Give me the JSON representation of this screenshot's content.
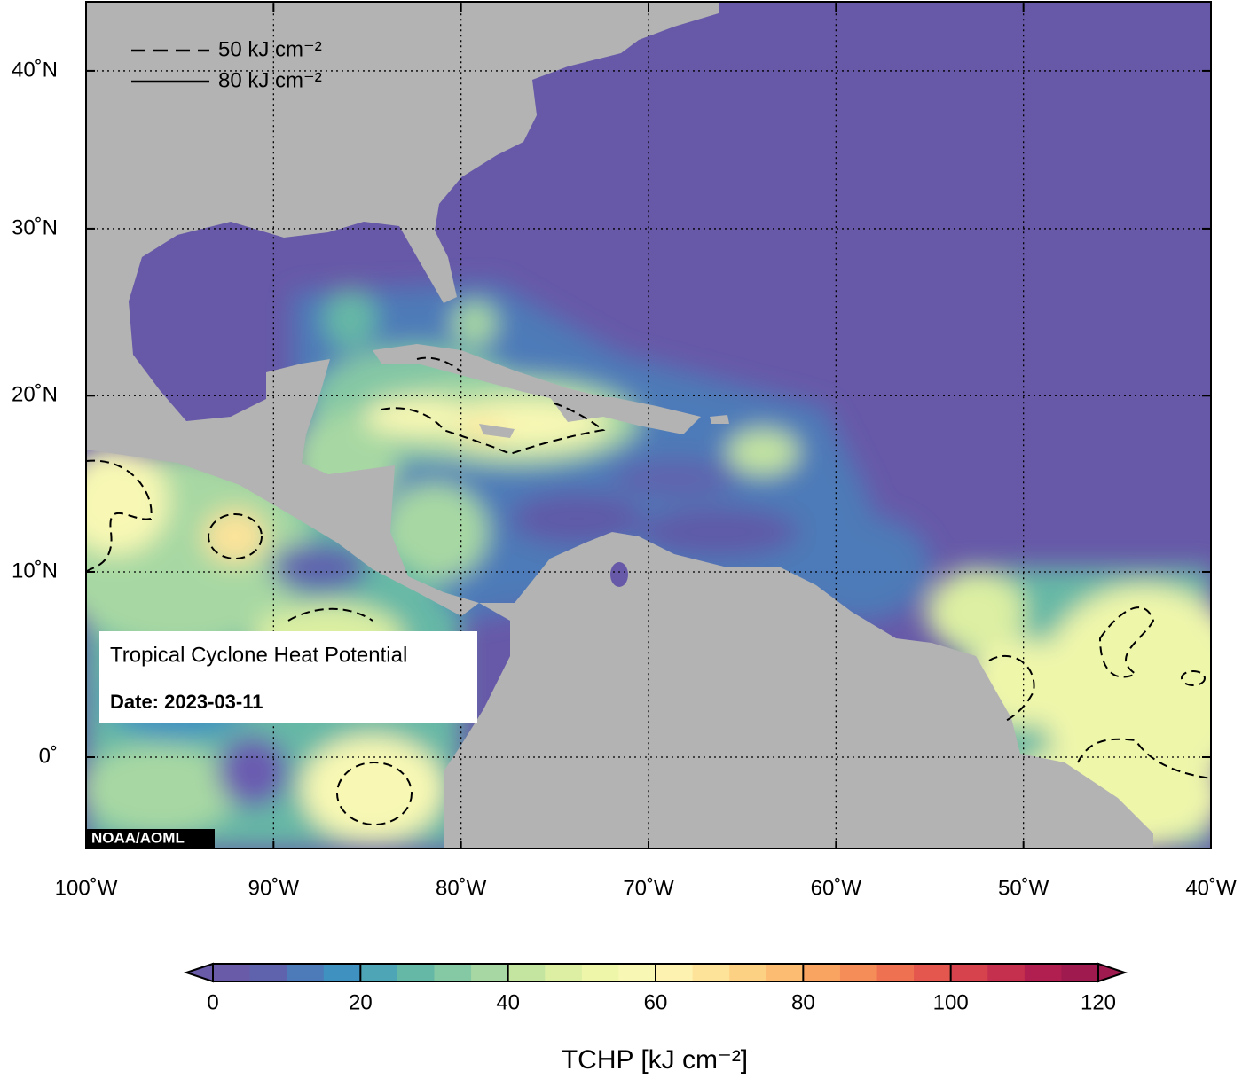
{
  "map": {
    "type": "map",
    "lonlim": [
      -100,
      -40
    ],
    "latlim": [
      -4.8,
      44.5
    ],
    "lon_ticks": [
      {
        "value": -100,
        "label": "100˚W"
      },
      {
        "value": -90,
        "label": "90˚W"
      },
      {
        "value": -80,
        "label": "80˚W"
      },
      {
        "value": -70,
        "label": "70˚W"
      },
      {
        "value": -60,
        "label": "60˚W"
      },
      {
        "value": -50,
        "label": "50˚W"
      },
      {
        "value": -40,
        "label": "40˚W"
      }
    ],
    "lat_ticks": [
      {
        "value": 0,
        "label": "0˚"
      },
      {
        "value": 10,
        "label": "10˚N"
      },
      {
        "value": 20,
        "label": "20˚N"
      },
      {
        "value": 30,
        "label": "30˚N"
      },
      {
        "value": 40,
        "label": "40˚N"
      }
    ],
    "grid": true,
    "legend": [
      {
        "label": "50 kJ cm⁻²",
        "style": "dashed"
      },
      {
        "label": "80 kJ cm⁻²",
        "style": "solid"
      }
    ],
    "info": {
      "title": "Tropical Cyclone Heat Potential",
      "date": "Date: 2023-03-11"
    },
    "credit": "NOAA/AOML"
  },
  "colorbar": {
    "lim": [
      0,
      120
    ],
    "ticks": [
      0,
      20,
      40,
      60,
      80,
      100,
      120
    ],
    "colors": [
      "#6a5ba8",
      "#5f63ad",
      "#4d7ab8",
      "#3f92bf",
      "#4ea5b5",
      "#66b8a6",
      "#85c8a4",
      "#a7d8a3",
      "#c4e5a0",
      "#dcefa2",
      "#eef6aa",
      "#f8f8b4",
      "#fef2b0",
      "#fde39a",
      "#fdd184",
      "#fcbd72",
      "#faa462",
      "#f58d59",
      "#ee7152",
      "#e4574e",
      "#d6434d",
      "#c5304f",
      "#b11f50",
      "#9e1a4f"
    ],
    "label": "TCHP [kJ cm⁻²]"
  }
}
